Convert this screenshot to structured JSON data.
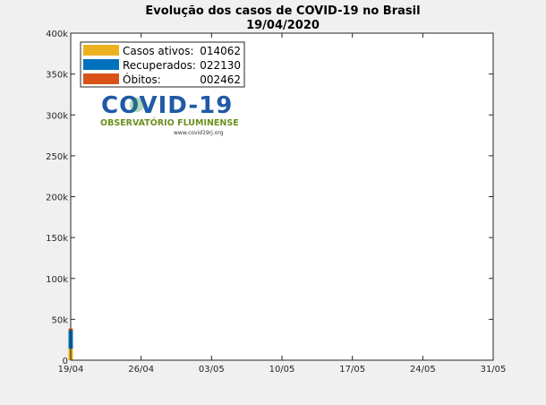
{
  "chart_data": {
    "type": "bar",
    "stacked": true,
    "title": "Evolução dos casos de COVID-19 no Brasil",
    "subtitle": "19/04/2020",
    "x_tick_labels": [
      "19/04",
      "26/04",
      "03/05",
      "10/05",
      "17/05",
      "24/05",
      "31/05"
    ],
    "y_tick_labels": [
      "0",
      "50k",
      "100k",
      "150k",
      "200k",
      "250k",
      "300k",
      "350k",
      "400k"
    ],
    "ylim": [
      0,
      400000
    ],
    "x_range_days": [
      0,
      42
    ],
    "categories": [
      "19/04"
    ],
    "series": [
      {
        "name": "Casos ativos:",
        "display_value": "014062",
        "values": [
          14062
        ],
        "color": "#edb120"
      },
      {
        "name": "Recuperados:",
        "display_value": "022130",
        "values": [
          22130
        ],
        "color": "#0072bd"
      },
      {
        "name": "Óbitos:",
        "display_value": "002462",
        "values": [
          2462
        ],
        "color": "#d95319"
      }
    ],
    "legend_position": "top-left",
    "grid": false
  },
  "logo": {
    "title": "COVID-19",
    "subtitle": "OBSERVATÓRIO FLUMINENSE",
    "url": "www.covid19rj.org"
  }
}
